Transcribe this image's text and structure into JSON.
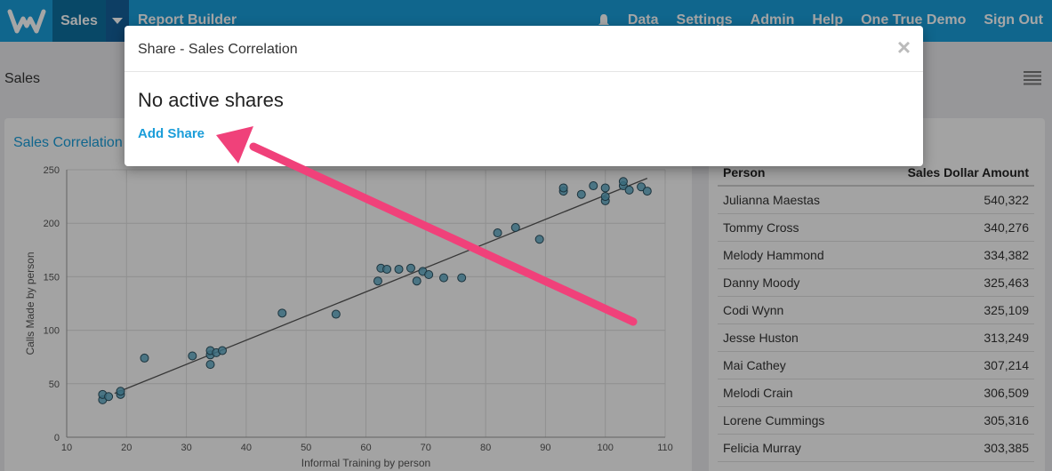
{
  "nav": {
    "sales_label": "Sales",
    "report_builder_label": "Report Builder",
    "right_links": [
      "Data",
      "Settings",
      "Admin",
      "Help",
      "One True Demo",
      "Sign Out"
    ]
  },
  "page": {
    "title": "Sales"
  },
  "chart_card": {
    "title": "Sales Correlation"
  },
  "table": {
    "col_person": "Person",
    "col_amount": "Sales Dollar Amount",
    "rows": [
      {
        "person": "Julianna Maestas",
        "amount": "540,322"
      },
      {
        "person": "Tommy Cross",
        "amount": "340,276"
      },
      {
        "person": "Melody Hammond",
        "amount": "334,382"
      },
      {
        "person": "Danny Moody",
        "amount": "325,463"
      },
      {
        "person": "Codi Wynn",
        "amount": "325,109"
      },
      {
        "person": "Jesse Huston",
        "amount": "313,249"
      },
      {
        "person": "Mai Cathey",
        "amount": "307,214"
      },
      {
        "person": "Melodi Crain",
        "amount": "306,509"
      },
      {
        "person": "Lorene Cummings",
        "amount": "305,316"
      },
      {
        "person": "Felicia Murray",
        "amount": "303,385"
      }
    ]
  },
  "modal": {
    "title": "Share - Sales Correlation",
    "close_glyph": "×",
    "heading": "No active shares",
    "add_share_label": "Add Share"
  },
  "colors": {
    "brand": "#1a9dd9",
    "annotation_arrow": "#f0417a",
    "point_fill": "#5aa7c2"
  },
  "chart_data": {
    "type": "scatter",
    "xlabel": "Informal Training by person",
    "ylabel": "Calls Made by person",
    "xlim": [
      10,
      110
    ],
    "ylim": [
      0,
      250
    ],
    "xticks": [
      10,
      20,
      30,
      40,
      50,
      60,
      70,
      80,
      90,
      100,
      110
    ],
    "yticks": [
      0,
      50,
      100,
      150,
      200,
      250
    ],
    "grid": true,
    "points": [
      [
        16,
        35
      ],
      [
        16,
        40
      ],
      [
        17,
        38
      ],
      [
        19,
        40
      ],
      [
        19,
        43
      ],
      [
        23,
        74
      ],
      [
        31,
        76
      ],
      [
        34,
        68
      ],
      [
        34,
        77
      ],
      [
        34,
        81
      ],
      [
        35,
        79
      ],
      [
        36,
        81
      ],
      [
        46,
        116
      ],
      [
        55,
        115
      ],
      [
        62,
        146
      ],
      [
        62.5,
        158
      ],
      [
        63.5,
        157
      ],
      [
        65.5,
        157
      ],
      [
        67.5,
        158
      ],
      [
        68.5,
        146
      ],
      [
        69.5,
        155
      ],
      [
        70.5,
        152
      ],
      [
        73,
        149
      ],
      [
        76,
        149
      ],
      [
        82,
        191
      ],
      [
        85,
        196
      ],
      [
        89,
        185
      ],
      [
        93,
        230
      ],
      [
        93,
        233
      ],
      [
        96,
        227
      ],
      [
        98,
        235
      ],
      [
        100,
        221
      ],
      [
        100,
        225
      ],
      [
        100,
        233
      ],
      [
        103,
        235
      ],
      [
        103,
        239
      ],
      [
        104,
        231
      ],
      [
        106,
        234
      ],
      [
        107,
        230
      ]
    ],
    "trendline": {
      "x": [
        18,
        107
      ],
      "y": [
        41,
        242
      ]
    }
  }
}
